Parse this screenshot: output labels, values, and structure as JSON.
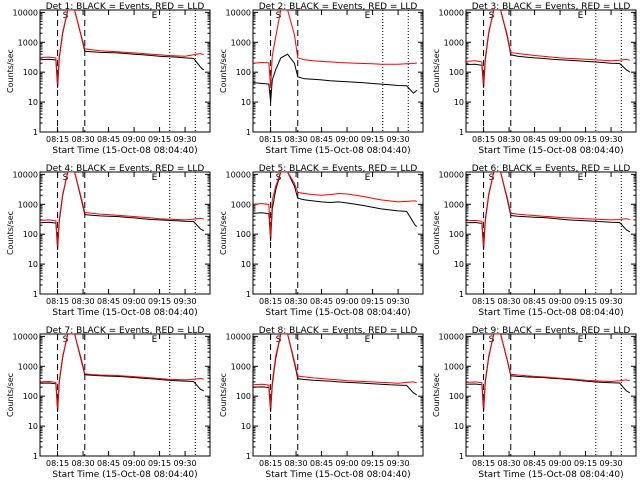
{
  "figure": {
    "ylabel": "Counts/sec",
    "xlabel": "Start Time (15-Oct-08 08:04:40)",
    "yticks": [
      "1",
      "10",
      "100",
      "1000",
      "10000"
    ],
    "xticks": [
      "08:15",
      "08:30",
      "08:45",
      "09:00",
      "09:15",
      "09:30"
    ],
    "colors": {
      "events": "#000000",
      "lld": "#ff0000"
    }
  },
  "chart_data": [
    {
      "type": "line",
      "title": "Det 1: BLACK = Events, RED = LLD",
      "xlabel": "Start Time (15-Oct-08 08:04:40)",
      "ylabel": "Counts/sec",
      "yscale": "log",
      "ylim": [
        1,
        12000
      ],
      "xlim": [
        "08:04:40",
        "09:44:40"
      ],
      "markers": {
        "S": "08:19:40",
        "E": "09:12:00"
      },
      "vlines_dashed": [
        "08:15:00",
        "08:31:00"
      ],
      "vlines_dotted": [
        "09:21:00",
        "09:36:00"
      ],
      "x": [
        "08:05",
        "08:10",
        "08:14",
        "08:15",
        "08:16",
        "08:18",
        "08:21",
        "08:25",
        "08:29",
        "08:31",
        "08:35",
        "08:40",
        "08:45",
        "08:50",
        "08:55",
        "09:00",
        "09:05",
        "09:10",
        "09:15",
        "09:20",
        "09:25",
        "09:30",
        "09:35",
        "09:39",
        "09:40",
        "09:41"
      ],
      "series": [
        {
          "name": "Events",
          "color": "#000000",
          "values": [
            260,
            270,
            255,
            30,
            300,
            2000,
            12000,
            12000,
            1500,
            500,
            480,
            460,
            450,
            440,
            420,
            400,
            380,
            360,
            340,
            330,
            320,
            300,
            290,
            150,
            130,
            120
          ]
        },
        {
          "name": "LLD",
          "color": "#ff0000",
          "values": [
            310,
            320,
            300,
            40,
            340,
            2200,
            12000,
            12000,
            1600,
            600,
            560,
            520,
            500,
            480,
            460,
            440,
            420,
            400,
            380,
            360,
            350,
            340,
            380,
            420,
            400,
            390
          ]
        }
      ]
    },
    {
      "type": "line",
      "title": "Det 2: BLACK = Events, RED = LLD",
      "xlabel": "Start Time (15-Oct-08 08:04:40)",
      "ylabel": "Counts/sec",
      "yscale": "log",
      "ylim": [
        1,
        12000
      ],
      "xlim": [
        "08:04:40",
        "09:44:40"
      ],
      "markers": {
        "S": "08:19:40",
        "E": "09:12:00"
      },
      "vlines_dashed": [
        "08:15:00",
        "08:31:00"
      ],
      "vlines_dotted": [
        "09:21:00",
        "09:36:00"
      ],
      "x": [
        "08:05",
        "08:10",
        "08:14",
        "08:15",
        "08:16",
        "08:18",
        "08:21",
        "08:25",
        "08:29",
        "08:31",
        "08:35",
        "08:40",
        "08:45",
        "08:50",
        "08:55",
        "09:00",
        "09:05",
        "09:10",
        "09:15",
        "09:20",
        "09:25",
        "09:30",
        "09:35",
        "09:39",
        "09:40",
        "09:41"
      ],
      "series": [
        {
          "name": "Events",
          "color": "#000000",
          "values": [
            45,
            42,
            40,
            10,
            55,
            120,
            300,
            400,
            200,
            70,
            60,
            58,
            55,
            52,
            50,
            48,
            46,
            44,
            42,
            40,
            38,
            36,
            35,
            20,
            22,
            25
          ]
        },
        {
          "name": "LLD",
          "color": "#ff0000",
          "values": [
            200,
            210,
            205,
            30,
            350,
            1500,
            12000,
            12000,
            1800,
            300,
            260,
            240,
            230,
            220,
            210,
            205,
            200,
            195,
            190,
            185,
            185,
            185,
            190,
            195,
            200,
            205
          ]
        }
      ]
    },
    {
      "type": "line",
      "title": "Det 3: BLACK = Events, RED = LLD",
      "xlabel": "Start Time (15-Oct-08 08:04:40)",
      "ylabel": "Counts/sec",
      "yscale": "log",
      "ylim": [
        1,
        12000
      ],
      "xlim": [
        "08:04:40",
        "09:44:40"
      ],
      "markers": {
        "S": "08:19:40",
        "E": "09:12:00"
      },
      "vlines_dashed": [
        "08:15:00",
        "08:31:00"
      ],
      "vlines_dotted": [
        "09:21:00",
        "09:36:00"
      ],
      "x": [
        "08:05",
        "08:10",
        "08:14",
        "08:15",
        "08:16",
        "08:18",
        "08:21",
        "08:25",
        "08:29",
        "08:31",
        "08:35",
        "08:40",
        "08:45",
        "08:50",
        "08:55",
        "09:00",
        "09:05",
        "09:10",
        "09:15",
        "09:20",
        "09:25",
        "09:30",
        "09:35",
        "09:39",
        "09:40",
        "09:41"
      ],
      "series": [
        {
          "name": "Events",
          "color": "#000000",
          "values": [
            180,
            185,
            170,
            30,
            250,
            2000,
            12000,
            12000,
            1500,
            380,
            340,
            320,
            300,
            290,
            270,
            260,
            250,
            240,
            230,
            220,
            210,
            200,
            195,
            120,
            110,
            100
          ]
        },
        {
          "name": "LLD",
          "color": "#ff0000",
          "values": [
            230,
            240,
            220,
            40,
            300,
            2200,
            12000,
            12000,
            1700,
            450,
            420,
            390,
            360,
            340,
            320,
            300,
            290,
            280,
            270,
            260,
            250,
            240,
            250,
            270,
            260,
            250
          ]
        }
      ]
    },
    {
      "type": "line",
      "title": "Det 4: BLACK = Events, RED = LLD",
      "xlabel": "Start Time (15-Oct-08 08:04:40)",
      "ylabel": "Counts/sec",
      "yscale": "log",
      "ylim": [
        1,
        12000
      ],
      "xlim": [
        "08:04:40",
        "09:44:40"
      ],
      "markers": {
        "S": "08:19:40",
        "E": "09:12:00"
      },
      "vlines_dashed": [
        "08:15:00",
        "08:31:00"
      ],
      "vlines_dotted": [
        "09:21:00",
        "09:36:00"
      ],
      "x": [
        "08:05",
        "08:10",
        "08:14",
        "08:15",
        "08:16",
        "08:18",
        "08:21",
        "08:25",
        "08:29",
        "08:31",
        "08:35",
        "08:40",
        "08:45",
        "08:50",
        "08:55",
        "09:00",
        "09:05",
        "09:10",
        "09:15",
        "09:20",
        "09:25",
        "09:30",
        "09:35",
        "09:39",
        "09:40",
        "09:41"
      ],
      "series": [
        {
          "name": "Events",
          "color": "#000000",
          "values": [
            240,
            250,
            235,
            30,
            280,
            2000,
            12000,
            12000,
            1400,
            450,
            430,
            410,
            400,
            390,
            370,
            350,
            330,
            310,
            300,
            290,
            280,
            270,
            265,
            150,
            140,
            130
          ]
        },
        {
          "name": "LLD",
          "color": "#ff0000",
          "values": [
            290,
            300,
            280,
            40,
            330,
            2200,
            12000,
            12000,
            1600,
            530,
            500,
            470,
            450,
            430,
            410,
            390,
            370,
            350,
            330,
            320,
            310,
            300,
            320,
            340,
            330,
            320
          ]
        }
      ]
    },
    {
      "type": "line",
      "title": "Det 5: BLACK = Events, RED = LLD",
      "xlabel": "Start Time (15-Oct-08 08:04:40)",
      "ylabel": "Counts/sec",
      "yscale": "log",
      "ylim": [
        1,
        12000
      ],
      "xlim": [
        "08:04:40",
        "09:44:40"
      ],
      "markers": {
        "S": "08:19:40",
        "E": "09:12:00"
      },
      "vlines_dashed": [
        "08:15:00",
        "08:31:00"
      ],
      "vlines_dotted": [],
      "x": [
        "08:05",
        "08:10",
        "08:14",
        "08:15",
        "08:16",
        "08:18",
        "08:21",
        "08:25",
        "08:29",
        "08:31",
        "08:35",
        "08:40",
        "08:45",
        "08:50",
        "08:55",
        "09:00",
        "09:05",
        "09:10",
        "09:15",
        "09:20",
        "09:25",
        "09:30",
        "09:35",
        "09:39",
        "09:40",
        "09:41"
      ],
      "series": [
        {
          "name": "Events",
          "color": "#000000",
          "values": [
            500,
            520,
            480,
            60,
            700,
            3000,
            12000,
            12000,
            4000,
            1600,
            1400,
            1300,
            1200,
            1150,
            1200,
            1100,
            1000,
            900,
            800,
            700,
            650,
            600,
            580,
            250,
            200,
            180
          ]
        },
        {
          "name": "LLD",
          "color": "#ff0000",
          "values": [
            1000,
            1050,
            980,
            80,
            1400,
            4000,
            12000,
            12000,
            5000,
            2500,
            2300,
            2100,
            2000,
            2100,
            2300,
            2200,
            2000,
            1800,
            1600,
            1400,
            1300,
            1200,
            1250,
            1300,
            1300,
            1250
          ]
        }
      ]
    },
    {
      "type": "line",
      "title": "Det 6: BLACK = Events, RED = LLD",
      "xlabel": "Start Time (15-Oct-08 08:04:40)",
      "ylabel": "Counts/sec",
      "yscale": "log",
      "ylim": [
        1,
        12000
      ],
      "xlim": [
        "08:04:40",
        "09:44:40"
      ],
      "markers": {
        "S": "08:19:40",
        "E": "09:12:00"
      },
      "vlines_dashed": [
        "08:15:00",
        "08:31:00"
      ],
      "vlines_dotted": [
        "09:21:00",
        "09:36:00"
      ],
      "x": [
        "08:05",
        "08:10",
        "08:14",
        "08:15",
        "08:16",
        "08:18",
        "08:21",
        "08:25",
        "08:29",
        "08:31",
        "08:35",
        "08:40",
        "08:45",
        "08:50",
        "08:55",
        "09:00",
        "09:05",
        "09:10",
        "09:15",
        "09:20",
        "09:25",
        "09:30",
        "09:35",
        "09:39",
        "09:40",
        "09:41"
      ],
      "series": [
        {
          "name": "Events",
          "color": "#000000",
          "values": [
            240,
            245,
            230,
            30,
            270,
            2000,
            12000,
            12000,
            1400,
            420,
            400,
            380,
            370,
            360,
            340,
            320,
            300,
            290,
            280,
            270,
            260,
            250,
            245,
            140,
            130,
            120
          ]
        },
        {
          "name": "LLD",
          "color": "#ff0000",
          "values": [
            280,
            290,
            270,
            40,
            320,
            2200,
            12000,
            12000,
            1600,
            500,
            470,
            440,
            420,
            400,
            380,
            360,
            350,
            340,
            330,
            320,
            310,
            300,
            310,
            330,
            320,
            310
          ]
        }
      ]
    },
    {
      "type": "line",
      "title": "Det 7: BLACK = Events, RED = LLD",
      "xlabel": "Start Time (15-Oct-08 08:04:40)",
      "ylabel": "Counts/sec",
      "yscale": "log",
      "ylim": [
        1,
        12000
      ],
      "xlim": [
        "08:04:40",
        "09:44:40"
      ],
      "markers": {
        "S": "08:19:40",
        "E": "09:12:00"
      },
      "vlines_dashed": [
        "08:15:00",
        "08:31:00"
      ],
      "vlines_dotted": [
        "09:21:00",
        "09:36:00"
      ],
      "x": [
        "08:05",
        "08:10",
        "08:14",
        "08:15",
        "08:16",
        "08:18",
        "08:21",
        "08:25",
        "08:29",
        "08:31",
        "08:35",
        "08:40",
        "08:45",
        "08:50",
        "08:55",
        "09:00",
        "09:05",
        "09:10",
        "09:15",
        "09:20",
        "09:25",
        "09:30",
        "09:35",
        "09:39",
        "09:40",
        "09:41"
      ],
      "series": [
        {
          "name": "Events",
          "color": "#000000",
          "values": [
            270,
            275,
            260,
            30,
            300,
            2000,
            12000,
            12000,
            1500,
            520,
            500,
            480,
            470,
            460,
            440,
            420,
            400,
            380,
            360,
            340,
            330,
            320,
            310,
            170,
            160,
            150
          ]
        },
        {
          "name": "LLD",
          "color": "#ff0000",
          "values": [
            300,
            310,
            290,
            40,
            340,
            2200,
            12000,
            12000,
            1700,
            560,
            530,
            510,
            500,
            490,
            470,
            450,
            430,
            410,
            390,
            370,
            360,
            350,
            370,
            390,
            380,
            370
          ]
        }
      ]
    },
    {
      "type": "line",
      "title": "Det 8: BLACK = Events, RED = LLD",
      "xlabel": "Start Time (15-Oct-08 08:04:40)",
      "ylabel": "Counts/sec",
      "yscale": "log",
      "ylim": [
        1,
        12000
      ],
      "xlim": [
        "08:04:40",
        "09:44:40"
      ],
      "markers": {
        "S": "08:19:40",
        "E": "09:12:00"
      },
      "vlines_dashed": [
        "08:15:00",
        "08:31:00"
      ],
      "vlines_dotted": [],
      "x": [
        "08:05",
        "08:10",
        "08:14",
        "08:15",
        "08:16",
        "08:18",
        "08:21",
        "08:25",
        "08:29",
        "08:31",
        "08:35",
        "08:40",
        "08:45",
        "08:50",
        "08:55",
        "09:00",
        "09:05",
        "09:10",
        "09:15",
        "09:20",
        "09:25",
        "09:30",
        "09:35",
        "09:39",
        "09:40",
        "09:41"
      ],
      "series": [
        {
          "name": "Events",
          "color": "#000000",
          "values": [
            200,
            205,
            195,
            30,
            240,
            1800,
            12000,
            12000,
            1300,
            380,
            360,
            340,
            330,
            320,
            300,
            290,
            280,
            270,
            260,
            250,
            240,
            235,
            230,
            130,
            120,
            110
          ]
        },
        {
          "name": "LLD",
          "color": "#ff0000",
          "values": [
            240,
            250,
            235,
            40,
            300,
            2200,
            12000,
            12000,
            1500,
            470,
            440,
            410,
            390,
            370,
            350,
            330,
            320,
            310,
            300,
            290,
            280,
            270,
            290,
            300,
            290,
            280
          ]
        }
      ]
    },
    {
      "type": "line",
      "title": "Det 9: BLACK = Events, RED = LLD",
      "xlabel": "Start Time (15-Oct-08 08:04:40)",
      "ylabel": "Counts/sec",
      "yscale": "log",
      "ylim": [
        1,
        12000
      ],
      "xlim": [
        "08:04:40",
        "09:44:40"
      ],
      "markers": {
        "S": "08:19:40",
        "E": "09:12:00"
      },
      "vlines_dashed": [
        "08:15:00",
        "08:31:00"
      ],
      "vlines_dotted": [
        "09:21:00",
        "09:36:00"
      ],
      "x": [
        "08:05",
        "08:10",
        "08:14",
        "08:15",
        "08:16",
        "08:18",
        "08:21",
        "08:25",
        "08:29",
        "08:31",
        "08:35",
        "08:40",
        "08:45",
        "08:50",
        "08:55",
        "09:00",
        "09:05",
        "09:10",
        "09:15",
        "09:20",
        "09:25",
        "09:30",
        "09:35",
        "09:39",
        "09:40",
        "09:41"
      ],
      "series": [
        {
          "name": "Events",
          "color": "#000000",
          "values": [
            250,
            255,
            240,
            30,
            290,
            2000,
            12000,
            12000,
            1500,
            480,
            460,
            440,
            430,
            420,
            400,
            380,
            360,
            340,
            320,
            300,
            290,
            280,
            275,
            150,
            140,
            130
          ]
        },
        {
          "name": "LLD",
          "color": "#ff0000",
          "values": [
            290,
            300,
            280,
            40,
            330,
            2200,
            12000,
            12000,
            1600,
            540,
            510,
            480,
            460,
            440,
            420,
            400,
            380,
            360,
            340,
            330,
            320,
            310,
            330,
            350,
            340,
            330
          ]
        }
      ]
    }
  ]
}
